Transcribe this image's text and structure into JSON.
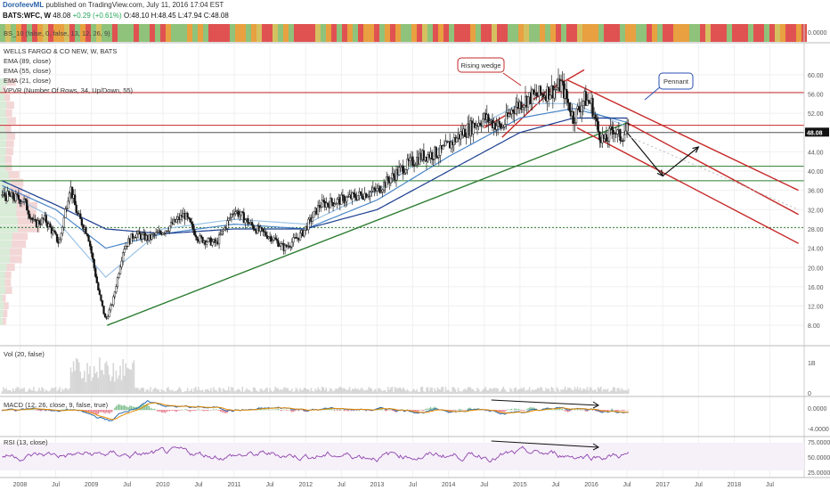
{
  "header": {
    "author": "DorofeevML",
    "published": "published on TradingView.com, July 11, 2016 17:04 EST",
    "symbol_line": "BATS:WFC, W",
    "last": "48.08",
    "change": "+0.29 (+0.61%)",
    "ohlc": "O:48.10 H:48.45 L:47.94 C:48.08"
  },
  "colors": {
    "candle_up": "#444444",
    "candle_down": "#111111",
    "trend_green": "#2e7d32",
    "channel_red": "#c62828",
    "ema89": "#1a3d8f",
    "ema55": "#4a86c8",
    "ema21": "#9cc3e6",
    "macd": "#2b6cb0",
    "signal": "#e68a00",
    "rsi": "#8e44ad",
    "vol": "#d6d6d6"
  },
  "indicator_labels": {
    "strip": "BS_10 (false, 0, false, 13, 12, 26, 9)",
    "title": "WELLS FARGO & CO NEW, W, BATS",
    "ema89": "EMA (89, close)",
    "ema55": "EMA (55, close)",
    "ema21": "EMA (21, close)",
    "vpvr": "VPVR (Number Of Rows, 34, Up/Down, 55)",
    "vol": "Vol (20, false)",
    "macd": "MACD (12, 26, close, 9, false, true)",
    "rsi": "RSI (13, close)"
  },
  "annotations": {
    "rising_wedge": "Rising wedge",
    "pennant": "Pennant"
  },
  "chart_data": {
    "type": "candlestick",
    "x_axis_labels": [
      "2008",
      "Jul",
      "2009",
      "Jul",
      "2010",
      "Jul",
      "2011",
      "Jul",
      "2012",
      "Jul",
      "2013",
      "Jul",
      "2014",
      "Jul",
      "2015",
      "Jul",
      "2016",
      "Jul",
      "2017",
      "Jul",
      "2018",
      "Jul"
    ],
    "price_axis": {
      "ticks": [
        "60.00",
        "56.00",
        "52.00",
        "48.00",
        "44.00",
        "40.00",
        "36.00",
        "32.00",
        "28.00",
        "24.00",
        "20.00",
        "16.00",
        "12.00",
        "8.00"
      ],
      "ylim": [
        6,
        62
      ],
      "last_price": "48.08"
    },
    "strip_axis_tick": "0.0000",
    "vol_axis_ticks": [
      "1B",
      "0"
    ],
    "macd_axis_ticks": [
      "0.0000",
      "-4.0000"
    ],
    "rsi_axis_ticks": [
      "75.0000",
      "50.0000",
      "25.0000"
    ],
    "price_path": [
      {
        "t": 2007.75,
        "p": 35
      },
      {
        "t": 2008.05,
        "p": 34
      },
      {
        "t": 2008.2,
        "p": 29
      },
      {
        "t": 2008.35,
        "p": 30
      },
      {
        "t": 2008.55,
        "p": 25
      },
      {
        "t": 2008.7,
        "p": 37
      },
      {
        "t": 2008.8,
        "p": 31
      },
      {
        "t": 2008.95,
        "p": 27
      },
      {
        "t": 2009.1,
        "p": 15
      },
      {
        "t": 2009.2,
        "p": 9
      },
      {
        "t": 2009.3,
        "p": 13
      },
      {
        "t": 2009.45,
        "p": 24
      },
      {
        "t": 2009.6,
        "p": 27
      },
      {
        "t": 2009.8,
        "p": 26
      },
      {
        "t": 2010.05,
        "p": 28
      },
      {
        "t": 2010.3,
        "p": 31
      },
      {
        "t": 2010.5,
        "p": 26
      },
      {
        "t": 2010.75,
        "p": 25
      },
      {
        "t": 2011.0,
        "p": 32
      },
      {
        "t": 2011.3,
        "p": 28
      },
      {
        "t": 2011.55,
        "p": 26
      },
      {
        "t": 2011.7,
        "p": 24
      },
      {
        "t": 2011.95,
        "p": 27
      },
      {
        "t": 2012.2,
        "p": 33
      },
      {
        "t": 2012.5,
        "p": 34
      },
      {
        "t": 2012.75,
        "p": 35
      },
      {
        "t": 2013.0,
        "p": 36
      },
      {
        "t": 2013.3,
        "p": 40
      },
      {
        "t": 2013.6,
        "p": 43
      },
      {
        "t": 2013.9,
        "p": 44
      },
      {
        "t": 2014.2,
        "p": 48
      },
      {
        "t": 2014.5,
        "p": 51
      },
      {
        "t": 2014.75,
        "p": 49
      },
      {
        "t": 2014.9,
        "p": 53
      },
      {
        "t": 2015.1,
        "p": 55
      },
      {
        "t": 2015.3,
        "p": 56
      },
      {
        "t": 2015.5,
        "p": 57
      },
      {
        "t": 2015.58,
        "p": 58
      },
      {
        "t": 2015.65,
        "p": 55
      },
      {
        "t": 2015.75,
        "p": 51
      },
      {
        "t": 2015.9,
        "p": 55
      },
      {
        "t": 2016.0,
        "p": 54
      },
      {
        "t": 2016.1,
        "p": 48
      },
      {
        "t": 2016.2,
        "p": 46
      },
      {
        "t": 2016.3,
        "p": 49
      },
      {
        "t": 2016.4,
        "p": 47
      },
      {
        "t": 2016.5,
        "p": 48.5
      },
      {
        "t": 2016.53,
        "p": 48.08
      }
    ],
    "ema_points": {
      "ema89": [
        {
          "t": 2007.75,
          "p": 38
        },
        {
          "t": 2008.5,
          "p": 33
        },
        {
          "t": 2009.2,
          "p": 28
        },
        {
          "t": 2010.0,
          "p": 27
        },
        {
          "t": 2011.0,
          "p": 28
        },
        {
          "t": 2012.0,
          "p": 28
        },
        {
          "t": 2013.0,
          "p": 32
        },
        {
          "t": 2014.0,
          "p": 40
        },
        {
          "t": 2015.0,
          "p": 48
        },
        {
          "t": 2015.75,
          "p": 51
        },
        {
          "t": 2016.53,
          "p": 51
        }
      ],
      "ema55": [
        {
          "t": 2007.75,
          "p": 37
        },
        {
          "t": 2008.5,
          "p": 32
        },
        {
          "t": 2009.2,
          "p": 24
        },
        {
          "t": 2010.0,
          "p": 27
        },
        {
          "t": 2011.0,
          "p": 29
        },
        {
          "t": 2012.0,
          "p": 28
        },
        {
          "t": 2013.0,
          "p": 34
        },
        {
          "t": 2014.0,
          "p": 43
        },
        {
          "t": 2015.0,
          "p": 51
        },
        {
          "t": 2015.75,
          "p": 53
        },
        {
          "t": 2016.53,
          "p": 50
        }
      ],
      "ema21": [
        {
          "t": 2007.75,
          "p": 36
        },
        {
          "t": 2008.5,
          "p": 30
        },
        {
          "t": 2009.2,
          "p": 18
        },
        {
          "t": 2010.0,
          "p": 28
        },
        {
          "t": 2011.0,
          "p": 30
        },
        {
          "t": 2012.0,
          "p": 29
        },
        {
          "t": 2013.0,
          "p": 36
        },
        {
          "t": 2014.0,
          "p": 46
        },
        {
          "t": 2015.0,
          "p": 54
        },
        {
          "t": 2015.75,
          "p": 54
        },
        {
          "t": 2016.53,
          "p": 49
        }
      ]
    },
    "horizontal_levels": [
      {
        "price": 56.3,
        "color": "#c62828",
        "style": "solid"
      },
      {
        "price": 49.5,
        "color": "#c62828",
        "style": "solid"
      },
      {
        "price": 48.0,
        "color": "#555555",
        "style": "solid"
      },
      {
        "price": 41.0,
        "color": "#2e7d32",
        "style": "solid"
      },
      {
        "price": 38.0,
        "color": "#2e7d32",
        "style": "solid"
      },
      {
        "price": 28.3,
        "color": "#2e7d32",
        "style": "dotted"
      }
    ],
    "trendlines": [
      {
        "name": "support",
        "from": {
          "t": 2009.22,
          "p": 8
        },
        "to": {
          "t": 2016.5,
          "p": 50
        },
        "color": "#2e7d32"
      },
      {
        "name": "wedge-upper",
        "from": {
          "t": 2014.5,
          "p": 49
        },
        "to": {
          "t": 2015.9,
          "p": 61
        },
        "color": "#c62828"
      },
      {
        "name": "wedge-lower",
        "from": {
          "t": 2014.75,
          "p": 47
        },
        "to": {
          "t": 2015.6,
          "p": 59
        },
        "color": "#c62828"
      },
      {
        "name": "channel-upper",
        "from": {
          "t": 2015.65,
          "p": 59
        },
        "to": {
          "t": 2018.9,
          "p": 36
        },
        "color": "#c62828"
      },
      {
        "name": "channel-mid",
        "from": {
          "t": 2016.5,
          "p": 50
        },
        "to": {
          "t": 2018.9,
          "p": 31
        },
        "color": "#c62828"
      },
      {
        "name": "channel-lower",
        "from": {
          "t": 2015.8,
          "p": 49
        },
        "to": {
          "t": 2018.9,
          "p": 25
        },
        "color": "#c62828"
      }
    ],
    "projection_arrows": [
      {
        "from": {
          "t": 2016.5,
          "p": 48
        },
        "to": {
          "t": 2017.0,
          "p": 39
        }
      },
      {
        "from": {
          "t": 2017.0,
          "p": 39
        },
        "to": {
          "t": 2017.5,
          "p": 45
        }
      }
    ]
  }
}
